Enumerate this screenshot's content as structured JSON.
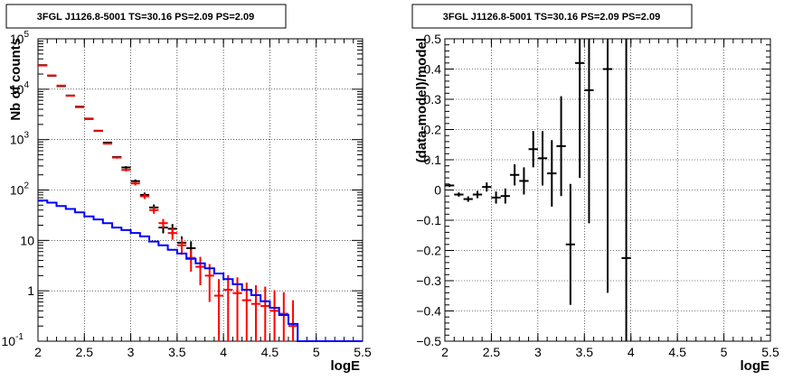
{
  "chart_data": [
    {
      "type": "line",
      "title": "3FGL J1126.8-5001 TS=30.16 PS=2.09 PS=2.09",
      "xlabel": "logE",
      "ylabel": "Nb of counts",
      "xlim": [
        2,
        5.5
      ],
      "ylim": [
        0.1,
        100000
      ],
      "yscale": "log",
      "grid": true,
      "xticks": [
        "2",
        "2.5",
        "3",
        "3.5",
        "4",
        "4.5",
        "5",
        "5.5"
      ],
      "yticks": [
        {
          "value": 0.1,
          "base": "10",
          "exp": "-1"
        },
        {
          "value": 1,
          "base": "1",
          "exp": ""
        },
        {
          "value": 10,
          "base": "10",
          "exp": ""
        },
        {
          "value": 100,
          "base": "10",
          "exp": "2"
        },
        {
          "value": 1000,
          "base": "10",
          "exp": "3"
        },
        {
          "value": 10000,
          "base": "10",
          "exp": "4"
        },
        {
          "value": 100000,
          "base": "10",
          "exp": "5"
        }
      ],
      "bin_width": 0.1,
      "series": [
        {
          "color": "#000000",
          "style": "errorbar",
          "x": [
            2.05,
            2.15,
            2.25,
            2.35,
            2.45,
            2.55,
            2.65,
            2.75,
            2.85,
            2.95,
            3.05,
            3.15,
            3.25,
            3.35,
            3.45,
            3.55,
            3.65,
            3.75
          ],
          "y": [
            30000,
            18500,
            11500,
            7500,
            4500,
            2600,
            1500,
            870,
            450,
            280,
            150,
            80,
            45,
            18,
            17,
            9,
            7,
            3
          ],
          "yerr": [
            170,
            135,
            107,
            87,
            67,
            51,
            39,
            29,
            21,
            17,
            12,
            9,
            6.7,
            4.2,
            4.1,
            3,
            2.6,
            1.7
          ]
        },
        {
          "color": "#ff0000",
          "style": "errorbar",
          "x": [
            2.05,
            2.15,
            2.25,
            2.35,
            2.45,
            2.55,
            2.65,
            2.75,
            2.85,
            2.95,
            3.05,
            3.15,
            3.25,
            3.35,
            3.45,
            3.55,
            3.65,
            3.75,
            3.85,
            3.95,
            4.05,
            4.15,
            4.25,
            4.35,
            4.45,
            4.55,
            4.65,
            4.75
          ],
          "y": [
            29500,
            18800,
            11800,
            7400,
            4400,
            2550,
            1480,
            830,
            440,
            250,
            135,
            75,
            40,
            22,
            14,
            8,
            4.5,
            3,
            2,
            0.8,
            1.05,
            0.9,
            0.65,
            0.55,
            0.5,
            0.4,
            0.35,
            0.2
          ],
          "yerr": [
            170,
            137,
            108,
            86,
            66,
            50,
            38,
            29,
            21,
            16,
            12,
            8.7,
            6.3,
            4.7,
            3.7,
            2.8,
            2.1,
            1.7,
            1.4,
            0.9,
            1,
            0.95,
            0.8,
            0.74,
            0.71,
            0.63,
            0.59,
            0.45
          ]
        },
        {
          "color": "#0000ff",
          "style": "step",
          "edges": [
            2,
            2.1,
            2.2,
            2.3,
            2.4,
            2.5,
            2.6,
            2.7,
            2.8,
            2.9,
            3,
            3.1,
            3.2,
            3.3,
            3.4,
            3.5,
            3.6,
            3.7,
            3.8,
            3.9,
            4,
            4.1,
            4.2,
            4.3,
            4.4,
            4.5,
            4.6,
            4.7,
            4.8,
            4.9,
            5,
            5.1,
            5.2,
            5.3,
            5.4,
            5.5
          ],
          "values": [
            62,
            56,
            48,
            42,
            36,
            30,
            26,
            22,
            18,
            16,
            14,
            12,
            9.5,
            8,
            6.5,
            5.5,
            4.3,
            3.5,
            2.8,
            2.2,
            1.7,
            1.35,
            1.05,
            0.82,
            0.62,
            0.46,
            0.33,
            0.22,
            0.1,
            0.1,
            0.1,
            0.1,
            0.1,
            0.1,
            0.1
          ]
        }
      ]
    },
    {
      "type": "scatter",
      "title": "3FGL J1126.8-5001 TS=30.16 PS=2.09 PS=2.09",
      "xlabel": "logE",
      "ylabel": "(data-model)/model",
      "xlim": [
        2,
        5.5
      ],
      "ylim": [
        -0.5,
        0.5
      ],
      "grid": true,
      "xticks": [
        "2",
        "2.5",
        "3",
        "3.5",
        "4",
        "4.5",
        "5",
        "5.5"
      ],
      "yticks": [
        "−0.5",
        "−0.4",
        "−0.3",
        "−0.2",
        "−0.1",
        "0",
        "0.1",
        "0.2",
        "0.3",
        "0.4",
        "0.5"
      ],
      "bin_width": 0.1,
      "series": [
        {
          "color": "#000000",
          "style": "errorbar",
          "x": [
            2.05,
            2.15,
            2.25,
            2.35,
            2.45,
            2.55,
            2.65,
            2.75,
            2.85,
            2.95,
            3.05,
            3.15,
            3.25,
            3.35,
            3.45,
            3.55,
            3.75,
            3.95
          ],
          "y": [
            0.015,
            -0.015,
            -0.03,
            -0.015,
            0.01,
            -0.025,
            -0.02,
            0.05,
            0.03,
            0.135,
            0.105,
            0.055,
            0.145,
            -0.18,
            0.42,
            0.33,
            0.4,
            -0.225
          ],
          "yerr": [
            0.005,
            0.007,
            0.009,
            0.012,
            0.015,
            0.02,
            0.025,
            0.035,
            0.045,
            0.06,
            0.09,
            0.11,
            0.165,
            0.2,
            0.38,
            0.44,
            0.74,
            0.85
          ]
        }
      ]
    }
  ]
}
